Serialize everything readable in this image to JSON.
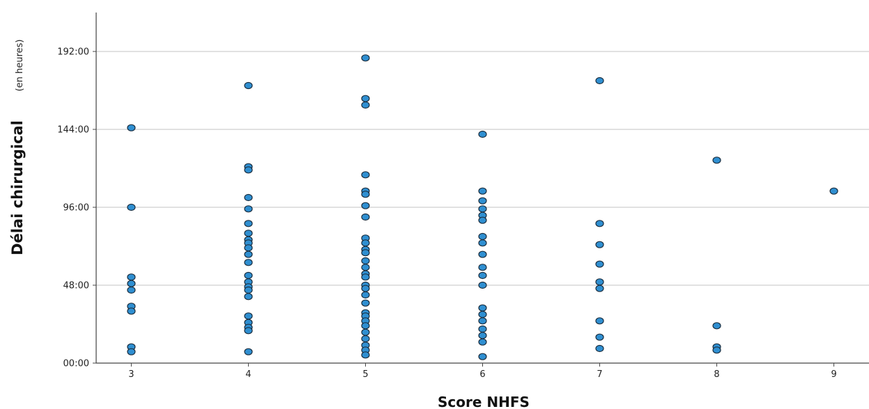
{
  "chart_data": {
    "type": "scatter",
    "title": "",
    "xlabel": "Score NHFS",
    "ylabel": "Délai chirurgical",
    "ylabel_unit": "(en heures)",
    "x_ticks": [
      3,
      4,
      5,
      6,
      7,
      8,
      9
    ],
    "y_ticks": [
      {
        "value": 0,
        "label": "00:00"
      },
      {
        "value": 48,
        "label": "48:00"
      },
      {
        "value": 96,
        "label": "96:00"
      },
      {
        "value": 144,
        "label": "144:00"
      },
      {
        "value": 192,
        "label": "192:00"
      }
    ],
    "xlim": [
      2.7,
      9.3
    ],
    "ylim": [
      0,
      216
    ],
    "grid": "horizontal",
    "point_color": "#2f8fd1",
    "series": [
      {
        "points": [
          {
            "x": 3,
            "y": 145
          },
          {
            "x": 3,
            "y": 96
          },
          {
            "x": 3,
            "y": 53
          },
          {
            "x": 3,
            "y": 49
          },
          {
            "x": 3,
            "y": 45
          },
          {
            "x": 3,
            "y": 35
          },
          {
            "x": 3,
            "y": 32
          },
          {
            "x": 3,
            "y": 10
          },
          {
            "x": 3,
            "y": 7
          },
          {
            "x": 4,
            "y": 171
          },
          {
            "x": 4,
            "y": 121
          },
          {
            "x": 4,
            "y": 119
          },
          {
            "x": 4,
            "y": 102
          },
          {
            "x": 4,
            "y": 95
          },
          {
            "x": 4,
            "y": 86
          },
          {
            "x": 4,
            "y": 80
          },
          {
            "x": 4,
            "y": 76
          },
          {
            "x": 4,
            "y": 74
          },
          {
            "x": 4,
            "y": 71
          },
          {
            "x": 4,
            "y": 67
          },
          {
            "x": 4,
            "y": 62
          },
          {
            "x": 4,
            "y": 54
          },
          {
            "x": 4,
            "y": 50
          },
          {
            "x": 4,
            "y": 47
          },
          {
            "x": 4,
            "y": 45
          },
          {
            "x": 4,
            "y": 41
          },
          {
            "x": 4,
            "y": 29
          },
          {
            "x": 4,
            "y": 25
          },
          {
            "x": 4,
            "y": 22
          },
          {
            "x": 4,
            "y": 20
          },
          {
            "x": 4,
            "y": 7
          },
          {
            "x": 5,
            "y": 188
          },
          {
            "x": 5,
            "y": 163
          },
          {
            "x": 5,
            "y": 159
          },
          {
            "x": 5,
            "y": 116
          },
          {
            "x": 5,
            "y": 106
          },
          {
            "x": 5,
            "y": 104
          },
          {
            "x": 5,
            "y": 97
          },
          {
            "x": 5,
            "y": 90
          },
          {
            "x": 5,
            "y": 77
          },
          {
            "x": 5,
            "y": 74
          },
          {
            "x": 5,
            "y": 70
          },
          {
            "x": 5,
            "y": 68
          },
          {
            "x": 5,
            "y": 63
          },
          {
            "x": 5,
            "y": 59
          },
          {
            "x": 5,
            "y": 55
          },
          {
            "x": 5,
            "y": 53
          },
          {
            "x": 5,
            "y": 48
          },
          {
            "x": 5,
            "y": 46
          },
          {
            "x": 5,
            "y": 42
          },
          {
            "x": 5,
            "y": 37
          },
          {
            "x": 5,
            "y": 31
          },
          {
            "x": 5,
            "y": 29
          },
          {
            "x": 5,
            "y": 26
          },
          {
            "x": 5,
            "y": 23
          },
          {
            "x": 5,
            "y": 19
          },
          {
            "x": 5,
            "y": 15
          },
          {
            "x": 5,
            "y": 11
          },
          {
            "x": 5,
            "y": 8
          },
          {
            "x": 5,
            "y": 5
          },
          {
            "x": 6,
            "y": 141
          },
          {
            "x": 6,
            "y": 106
          },
          {
            "x": 6,
            "y": 100
          },
          {
            "x": 6,
            "y": 95
          },
          {
            "x": 6,
            "y": 91
          },
          {
            "x": 6,
            "y": 88
          },
          {
            "x": 6,
            "y": 78
          },
          {
            "x": 6,
            "y": 74
          },
          {
            "x": 6,
            "y": 67
          },
          {
            "x": 6,
            "y": 59
          },
          {
            "x": 6,
            "y": 54
          },
          {
            "x": 6,
            "y": 48
          },
          {
            "x": 6,
            "y": 34
          },
          {
            "x": 6,
            "y": 30
          },
          {
            "x": 6,
            "y": 26
          },
          {
            "x": 6,
            "y": 21
          },
          {
            "x": 6,
            "y": 17
          },
          {
            "x": 6,
            "y": 13
          },
          {
            "x": 6,
            "y": 4
          },
          {
            "x": 7,
            "y": 174
          },
          {
            "x": 7,
            "y": 86
          },
          {
            "x": 7,
            "y": 73
          },
          {
            "x": 7,
            "y": 61
          },
          {
            "x": 7,
            "y": 50
          },
          {
            "x": 7,
            "y": 46
          },
          {
            "x": 7,
            "y": 26
          },
          {
            "x": 7,
            "y": 16
          },
          {
            "x": 7,
            "y": 9
          },
          {
            "x": 8,
            "y": 125
          },
          {
            "x": 8,
            "y": 23
          },
          {
            "x": 8,
            "y": 10
          },
          {
            "x": 8,
            "y": 8
          },
          {
            "x": 9,
            "y": 106
          }
        ]
      }
    ]
  }
}
